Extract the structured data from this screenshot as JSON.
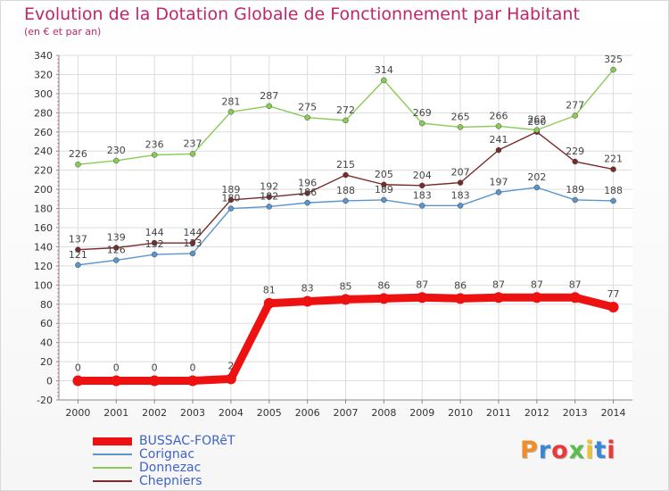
{
  "header": {
    "title": "Evolution de la Dotation Globale de Fonctionnement par Habitant",
    "subtitle": "(en € et par an)"
  },
  "logo": {
    "text": "Proxiti",
    "colors": [
      "#f28c28",
      "#3b86d8",
      "#e83a3a",
      "#5bbd4b",
      "#f2c12e",
      "#3b86d8",
      "#e83a3a"
    ]
  },
  "chart_data": {
    "type": "line",
    "x": [
      "2000",
      "2001",
      "2002",
      "2003",
      "2004",
      "2005",
      "2006",
      "2007",
      "2008",
      "2009",
      "2010",
      "2011",
      "2012",
      "2013",
      "2014"
    ],
    "ylim": [
      -20,
      340
    ],
    "yticks": [
      "-20",
      "0",
      "20",
      "40",
      "60",
      "80",
      "100",
      "120",
      "140",
      "160",
      "180",
      "200",
      "220",
      "240",
      "260",
      "280",
      "300",
      "320",
      "340"
    ],
    "grid": true,
    "legend_position": "bottom-left",
    "series": [
      {
        "name": "Chepniers",
        "color": "#7a2a2a",
        "values": [
          137,
          139,
          144,
          144,
          189,
          192,
          196,
          215,
          205,
          204,
          207,
          241,
          260,
          229,
          221
        ],
        "labels": [
          "137",
          "139",
          "144",
          "144",
          "189",
          "192",
          "196",
          "215",
          "205",
          "204",
          "207",
          "241",
          "260",
          "229",
          "221"
        ]
      },
      {
        "name": "Donnezac",
        "color": "#88cc55",
        "values": [
          226,
          230,
          236,
          237,
          281,
          287,
          275,
          272,
          314,
          269,
          265,
          266,
          262,
          277,
          325
        ],
        "labels": [
          "226",
          "230",
          "236",
          "237",
          "281",
          "287",
          "275",
          "272",
          "314",
          "269",
          "265",
          "266",
          "262",
          "277",
          "325"
        ]
      },
      {
        "name": "Corignac",
        "color": "#5a95cc",
        "values": [
          121,
          126,
          132,
          133,
          180,
          182,
          186,
          188,
          189,
          183,
          183,
          197,
          202,
          189,
          188
        ],
        "labels": [
          "121",
          "126",
          "132",
          "133",
          "180",
          "182",
          "186",
          "188",
          "189",
          "183",
          "183",
          "197",
          "202",
          "189",
          "188"
        ]
      },
      {
        "name": "BUSSAC-FORêT",
        "color": "#ee1111",
        "values": [
          0,
          0,
          0,
          0,
          2,
          81,
          83,
          85,
          86,
          87,
          86,
          87,
          87,
          87,
          77
        ],
        "labels": [
          "0",
          "0",
          "0",
          "0",
          "2",
          "81",
          "83",
          "85",
          "86",
          "87",
          "86",
          "87",
          "87",
          "87",
          "77"
        ]
      }
    ]
  },
  "legend": [
    {
      "label": "BUSSAC-FORêT",
      "color": "#ee1111",
      "thickness": 9
    },
    {
      "label": "Corignac",
      "color": "#5a95cc",
      "thickness": 2
    },
    {
      "label": "Donnezac",
      "color": "#88cc55",
      "thickness": 2
    },
    {
      "label": "Chepniers",
      "color": "#7a2a2a",
      "thickness": 2
    }
  ]
}
